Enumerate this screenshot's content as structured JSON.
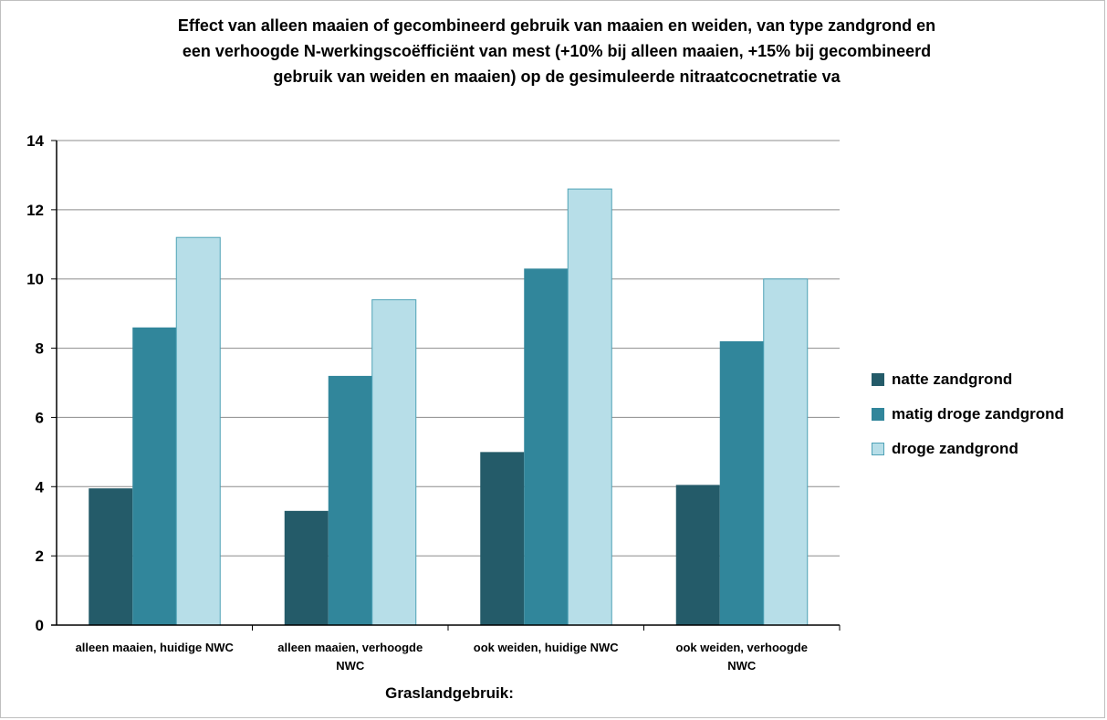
{
  "chart_data": {
    "type": "bar",
    "title_lines": [
      "Effect van alleen maaien of gecombineerd gebruik van maaien en weiden, van type zandgrond en",
      "een verhoogde N-werkingscoëfficiënt van mest (+10% bij alleen maaien, +15% bij gecombineerd",
      "gebruik van weiden en maaien) op de gesimuleerde nitraatcocnetratie va"
    ],
    "xlabel": "Graslandgebruik:",
    "ylabel": "",
    "ylim": [
      0,
      14
    ],
    "yticks": [
      "0",
      "2",
      "4",
      "6",
      "8",
      "10",
      "12",
      "14"
    ],
    "grid": true,
    "legend_position": "right",
    "categories": [
      [
        "alleen maaien, huidige NWC"
      ],
      [
        "alleen maaien, verhoogde",
        "NWC"
      ],
      [
        "ook weiden, huidige NWC"
      ],
      [
        "ook weiden, verhoogde",
        "NWC"
      ]
    ],
    "series": [
      {
        "name": "natte zandgrond",
        "color": "#245b69",
        "values": [
          3.95,
          3.3,
          5.0,
          4.05
        ]
      },
      {
        "name": "matig droge zandgrond",
        "color": "#31869b",
        "values": [
          8.6,
          7.2,
          10.3,
          8.2
        ]
      },
      {
        "name": "droge zandgrond",
        "color": "#b7dee8",
        "values": [
          11.2,
          9.4,
          12.6,
          10.0
        ]
      }
    ]
  }
}
